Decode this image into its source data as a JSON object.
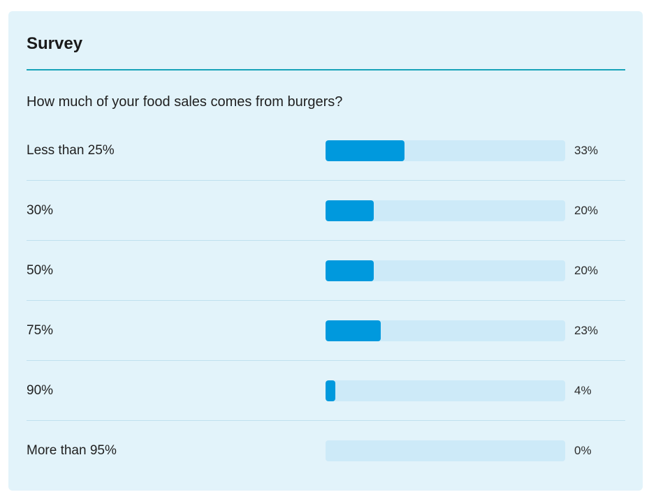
{
  "survey": {
    "title": "Survey",
    "question": "How much of your food sales comes from burgers?",
    "accent_color": "#0099dd",
    "rule_color": "#17a3b8",
    "options": [
      {
        "label": "Less than 25%",
        "percent_text": "33%",
        "percent": 33
      },
      {
        "label": "30%",
        "percent_text": "20%",
        "percent": 20
      },
      {
        "label": "50%",
        "percent_text": "20%",
        "percent": 20
      },
      {
        "label": "75%",
        "percent_text": "23%",
        "percent": 23
      },
      {
        "label": "90%",
        "percent_text": "4%",
        "percent": 4
      },
      {
        "label": "More than 95%",
        "percent_text": "0%",
        "percent": 0
      }
    ]
  }
}
